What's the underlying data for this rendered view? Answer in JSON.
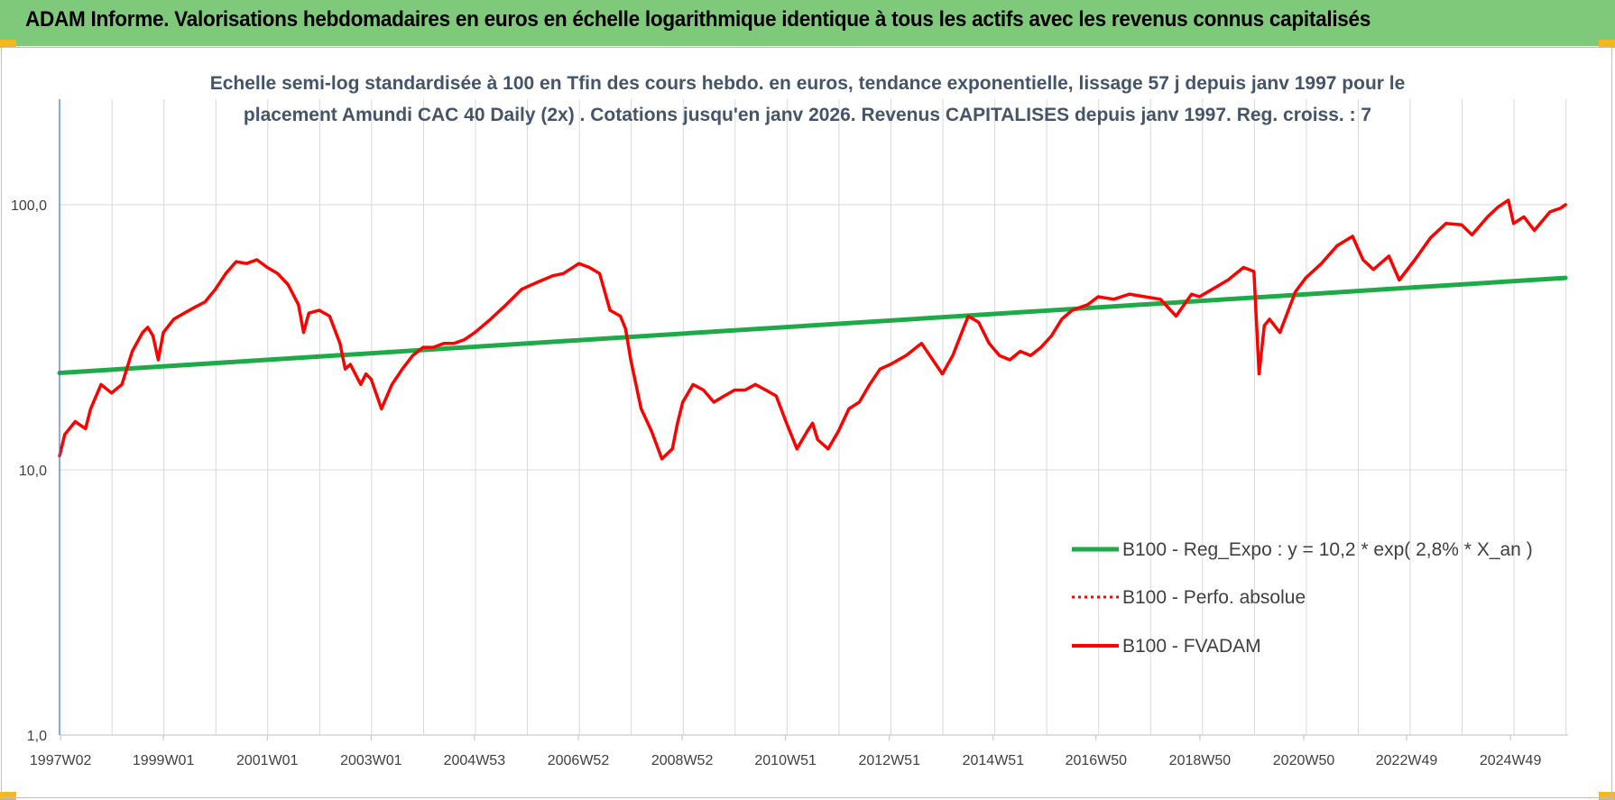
{
  "header": {
    "title": "ADAM Informe. Valorisations hebdomadaires en euros en échelle logarithmique identique à tous les actifs avec les revenus connus capitalisés"
  },
  "colors": {
    "banner": "#7fc97a",
    "corner": "#f4b81c",
    "regression": "#1faa4a",
    "fvadam": "#ff0000",
    "perfo": "#ff0000",
    "grid": "#d9d9d9",
    "title": "#44546a"
  },
  "chart_data": {
    "type": "line",
    "title_lines": [
      "Echelle semi-log standardisée à 100 en Tfin des cours hebdo. en euros, tendance exponentielle, lissage 57 j depuis janv 1997 pour le",
      "placement Amundi CAC 40 Daily (2x) . Cotations jusqu'en janv 2026. Revenus CAPITALISES depuis janv 1997. Reg. croiss. : 7"
    ],
    "y_scale": "log",
    "ylim": [
      1,
      250
    ],
    "xlim": [
      1997.0,
      2026.05
    ],
    "y_ticks": [
      {
        "value": 1,
        "label": "1,0"
      },
      {
        "value": 10,
        "label": "10,0"
      },
      {
        "value": 100,
        "label": "100,0"
      }
    ],
    "x_ticks": [
      {
        "value": 1997.02,
        "label": "1997W02"
      },
      {
        "value": 1999.0,
        "label": "1999W01"
      },
      {
        "value": 2001.0,
        "label": "2001W01"
      },
      {
        "value": 2003.0,
        "label": "2003W01"
      },
      {
        "value": 2004.99,
        "label": "2004W53"
      },
      {
        "value": 2006.99,
        "label": "2006W52"
      },
      {
        "value": 2008.99,
        "label": "2008W52"
      },
      {
        "value": 2010.98,
        "label": "2010W51"
      },
      {
        "value": 2012.98,
        "label": "2012W51"
      },
      {
        "value": 2014.98,
        "label": "2014W51"
      },
      {
        "value": 2016.96,
        "label": "2016W50"
      },
      {
        "value": 2018.96,
        "label": "2018W50"
      },
      {
        "value": 2020.96,
        "label": "2020W50"
      },
      {
        "value": 2022.94,
        "label": "2022W49"
      },
      {
        "value": 2024.94,
        "label": "2024W49"
      }
    ],
    "grid": true,
    "legend_position": "bottom-right",
    "series": [
      {
        "name": "B100 - Reg_Expo : y = 10,2 * exp( 2,8% *  X_an )",
        "style": "solid-thick",
        "color": "#1faa4a",
        "x": [
          1997.0,
          2026.0
        ],
        "y": [
          23.2,
          53.0
        ]
      },
      {
        "name": "B100 - Perfo. absolue",
        "style": "dotted",
        "color": "#ff0000",
        "x": [],
        "y": []
      },
      {
        "name": "B100 - FVADAM",
        "style": "solid",
        "color": "#ff0000",
        "x": [
          1997.0,
          1997.1,
          1997.3,
          1997.5,
          1997.6,
          1997.8,
          1998.0,
          1998.2,
          1998.4,
          1998.6,
          1998.7,
          1998.8,
          1998.9,
          1999.0,
          1999.2,
          1999.4,
          1999.6,
          1999.8,
          2000.0,
          2000.2,
          2000.4,
          2000.6,
          2000.8,
          2001.0,
          2001.2,
          2001.4,
          2001.6,
          2001.7,
          2001.8,
          2002.0,
          2002.2,
          2002.4,
          2002.5,
          2002.6,
          2002.8,
          2002.9,
          2003.0,
          2003.2,
          2003.4,
          2003.6,
          2003.8,
          2004.0,
          2004.2,
          2004.4,
          2004.6,
          2004.8,
          2005.0,
          2005.3,
          2005.6,
          2005.9,
          2006.2,
          2006.5,
          2006.7,
          2007.0,
          2007.2,
          2007.4,
          2007.6,
          2007.8,
          2007.9,
          2008.0,
          2008.2,
          2008.4,
          2008.6,
          2008.8,
          2008.9,
          2009.0,
          2009.2,
          2009.4,
          2009.6,
          2009.8,
          2010.0,
          2010.2,
          2010.4,
          2010.6,
          2010.8,
          2011.0,
          2011.2,
          2011.4,
          2011.5,
          2011.6,
          2011.8,
          2012.0,
          2012.2,
          2012.4,
          2012.6,
          2012.8,
          2013.0,
          2013.3,
          2013.6,
          2014.0,
          2014.2,
          2014.4,
          2014.5,
          2014.7,
          2014.9,
          2015.1,
          2015.3,
          2015.5,
          2015.7,
          2015.9,
          2016.1,
          2016.3,
          2016.5,
          2016.8,
          2017.0,
          2017.3,
          2017.6,
          2017.9,
          2018.2,
          2018.5,
          2018.8,
          2018.95,
          2019.2,
          2019.5,
          2019.8,
          2020.0,
          2020.1,
          2020.2,
          2020.3,
          2020.5,
          2020.8,
          2021.0,
          2021.3,
          2021.6,
          2021.9,
          2022.1,
          2022.3,
          2022.6,
          2022.8,
          2023.1,
          2023.4,
          2023.7,
          2024.0,
          2024.2,
          2024.5,
          2024.7,
          2024.9,
          2025.0,
          2025.2,
          2025.4,
          2025.7,
          2025.9,
          2026.0
        ],
        "y": [
          11.3,
          13.6,
          15.2,
          14.3,
          17.0,
          21.0,
          19.5,
          21.0,
          28.0,
          33.0,
          34.5,
          32.0,
          26.0,
          33.0,
          37.0,
          39.0,
          41.0,
          43.0,
          48.0,
          55.0,
          61.0,
          60.0,
          62.0,
          58.0,
          55.0,
          50.0,
          42.0,
          33.0,
          39.0,
          40.0,
          38.0,
          30.0,
          24.0,
          25.0,
          21.0,
          23.0,
          22.0,
          17.0,
          21.0,
          24.0,
          27.0,
          29.0,
          29.0,
          30.0,
          30.0,
          31.0,
          33.0,
          37.0,
          42.0,
          48.0,
          51.0,
          54.0,
          55.0,
          60.0,
          58.0,
          55.0,
          40.0,
          38.0,
          34.0,
          26.0,
          17.0,
          14.0,
          11.0,
          12.0,
          15.0,
          18.0,
          21.0,
          20.0,
          18.0,
          19.0,
          20.0,
          20.0,
          21.0,
          20.0,
          19.0,
          15.0,
          12.0,
          14.0,
          15.0,
          13.0,
          12.0,
          14.0,
          17.0,
          18.0,
          21.0,
          24.0,
          25.0,
          27.0,
          30.0,
          23.0,
          27.0,
          34.0,
          38.0,
          36.0,
          30.0,
          27.0,
          26.0,
          28.0,
          27.0,
          29.0,
          32.0,
          37.0,
          40.0,
          42.0,
          45.0,
          44.0,
          46.0,
          45.0,
          44.0,
          38.0,
          46.0,
          45.0,
          48.0,
          52.0,
          58.0,
          56.0,
          23.0,
          35.0,
          37.0,
          33.0,
          47.0,
          53.0,
          60.0,
          70.0,
          76.0,
          62.0,
          57.0,
          64.0,
          52.0,
          62.0,
          75.0,
          85.0,
          84.0,
          77.0,
          90.0,
          98.0,
          104.0,
          85.0,
          90.0,
          80.0,
          94.0,
          97.0,
          100.0
        ]
      }
    ]
  },
  "legend": [
    {
      "label": "B100 - Reg_Expo : y = 10,2 * exp( 2,8% *  X_an )",
      "style": "solid-thick",
      "color": "#1faa4a"
    },
    {
      "label": "B100 - Perfo. absolue",
      "style": "dotted",
      "color": "#ff0000"
    },
    {
      "label": "B100 - FVADAM",
      "style": "solid",
      "color": "#ff0000"
    }
  ]
}
